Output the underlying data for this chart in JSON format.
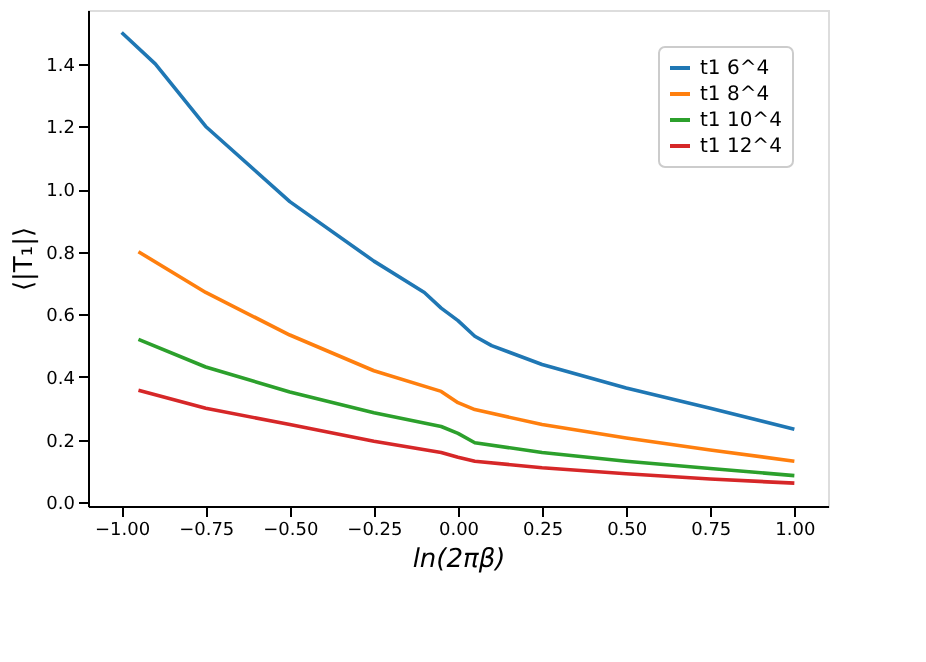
{
  "chart_data": {
    "type": "line",
    "xlabel": "ln(2πβ)",
    "ylabel": "⟨|T₁|⟩",
    "xlim": [
      -1.1,
      1.1
    ],
    "ylim": [
      -0.012,
      1.572
    ],
    "xticks": [
      {
        "value": -1,
        "label": "−1.00"
      },
      {
        "value": -0.75,
        "label": "−0.75"
      },
      {
        "value": -0.5,
        "label": "−0.50"
      },
      {
        "value": -0.25,
        "label": "−0.25"
      },
      {
        "value": 0,
        "label": "0.00"
      },
      {
        "value": 0.25,
        "label": "0.25"
      },
      {
        "value": 0.5,
        "label": "0.50"
      },
      {
        "value": 0.75,
        "label": "0.75"
      },
      {
        "value": 1,
        "label": "1.00"
      }
    ],
    "yticks": [
      {
        "value": 0,
        "label": "0.0"
      },
      {
        "value": 0.2,
        "label": "0.2"
      },
      {
        "value": 0.4,
        "label": "0.4"
      },
      {
        "value": 0.6,
        "label": "0.6"
      },
      {
        "value": 0.8,
        "label": "0.8"
      },
      {
        "value": 1,
        "label": "1.0"
      },
      {
        "value": 1.2,
        "label": "1.2"
      },
      {
        "value": 1.4,
        "label": "1.4"
      }
    ],
    "grid": false,
    "legend": "top right",
    "marker": "none",
    "line_style": "solid",
    "series": [
      {
        "name": "t1 6^4",
        "color": "#1f77b4",
        "x": [
          -1,
          -0.9,
          -0.75,
          -0.5,
          -0.25,
          -0.1,
          -0.05,
          0,
          0.05,
          0.1,
          0.25,
          0.5,
          0.75,
          1
        ],
        "values": [
          1.5,
          1.4,
          1.2,
          0.96,
          0.77,
          0.67,
          0.62,
          0.58,
          0.53,
          0.5,
          0.44,
          0.365,
          0.3,
          0.233
        ]
      },
      {
        "name": "t1 8^4",
        "color": "#ff7f0e",
        "x": [
          -0.95,
          -0.75,
          -0.5,
          -0.25,
          -0.05,
          0,
          0.05,
          0.25,
          0.5,
          0.75,
          1
        ],
        "values": [
          0.8,
          0.67,
          0.534,
          0.42,
          0.354,
          0.318,
          0.296,
          0.248,
          0.205,
          0.167,
          0.131
        ]
      },
      {
        "name": "t1 10^4",
        "color": "#2ca02c",
        "x": [
          -0.95,
          -0.75,
          -0.5,
          -0.25,
          -0.05,
          0,
          0.05,
          0.25,
          0.5,
          0.75,
          1
        ],
        "values": [
          0.52,
          0.432,
          0.352,
          0.286,
          0.242,
          0.22,
          0.19,
          0.159,
          0.131,
          0.108,
          0.085
        ]
      },
      {
        "name": "t1 12^4",
        "color": "#d62728",
        "x": [
          -0.95,
          -0.75,
          -0.5,
          -0.25,
          -0.05,
          0,
          0.05,
          0.25,
          0.5,
          0.75,
          1
        ],
        "values": [
          0.358,
          0.3,
          0.248,
          0.195,
          0.159,
          0.144,
          0.131,
          0.11,
          0.091,
          0.074,
          0.061
        ]
      }
    ]
  }
}
